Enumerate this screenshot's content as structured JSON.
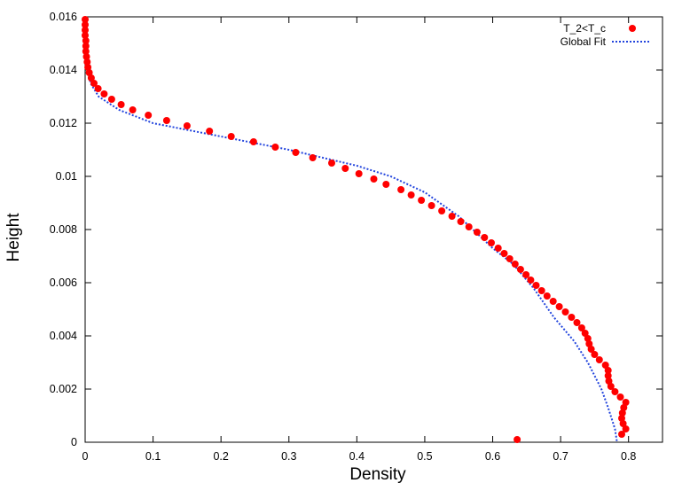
{
  "chart_data": {
    "type": "scatter",
    "title": "",
    "xlabel": "Density",
    "ylabel": "Height",
    "xlim": [
      0,
      0.85
    ],
    "ylim": [
      0,
      0.016
    ],
    "grid": false,
    "legend_position": "top-right",
    "x_ticks": [
      0,
      0.1,
      0.2,
      0.3,
      0.4,
      0.5,
      0.6,
      0.7,
      0.8
    ],
    "x_tick_labels": [
      "0",
      "0.1",
      "0.2",
      "0.3",
      "0.4",
      "0.5",
      "0.6",
      "0.7",
      "0.8"
    ],
    "y_ticks": [
      0,
      0.002,
      0.004,
      0.006,
      0.008,
      0.01,
      0.012,
      0.014,
      0.016
    ],
    "y_tick_labels": [
      "0",
      "0.002",
      "0.004",
      "0.006",
      "0.008",
      "0.01",
      "0.012",
      "0.014",
      "0.016"
    ],
    "series": [
      {
        "name": "T_2<T_c",
        "style": "points",
        "color": "#ff0000",
        "points": [
          [
            0.0,
            0.0159
          ],
          [
            0.0,
            0.0157
          ],
          [
            0.0,
            0.0155
          ],
          [
            0.0,
            0.0153
          ],
          [
            0.001,
            0.0151
          ],
          [
            0.001,
            0.0149
          ],
          [
            0.001,
            0.0147
          ],
          [
            0.002,
            0.0145
          ],
          [
            0.003,
            0.0143
          ],
          [
            0.004,
            0.0141
          ],
          [
            0.006,
            0.0139
          ],
          [
            0.009,
            0.0137
          ],
          [
            0.013,
            0.0135
          ],
          [
            0.019,
            0.0133
          ],
          [
            0.028,
            0.0131
          ],
          [
            0.039,
            0.0129
          ],
          [
            0.053,
            0.0127
          ],
          [
            0.07,
            0.0125
          ],
          [
            0.093,
            0.0123
          ],
          [
            0.12,
            0.0121
          ],
          [
            0.15,
            0.0119
          ],
          [
            0.183,
            0.0117
          ],
          [
            0.215,
            0.0115
          ],
          [
            0.248,
            0.0113
          ],
          [
            0.28,
            0.0111
          ],
          [
            0.31,
            0.0109
          ],
          [
            0.335,
            0.0107
          ],
          [
            0.363,
            0.0105
          ],
          [
            0.383,
            0.0103
          ],
          [
            0.403,
            0.0101
          ],
          [
            0.425,
            0.0099
          ],
          [
            0.443,
            0.0097
          ],
          [
            0.465,
            0.0095
          ],
          [
            0.48,
            0.0093
          ],
          [
            0.495,
            0.0091
          ],
          [
            0.51,
            0.0089
          ],
          [
            0.525,
            0.0087
          ],
          [
            0.54,
            0.0085
          ],
          [
            0.553,
            0.0083
          ],
          [
            0.565,
            0.0081
          ],
          [
            0.577,
            0.0079
          ],
          [
            0.588,
            0.0077
          ],
          [
            0.598,
            0.0075
          ],
          [
            0.608,
            0.0073
          ],
          [
            0.617,
            0.0071
          ],
          [
            0.625,
            0.0069
          ],
          [
            0.633,
            0.0067
          ],
          [
            0.641,
            0.0065
          ],
          [
            0.649,
            0.0063
          ],
          [
            0.656,
            0.0061
          ],
          [
            0.664,
            0.0059
          ],
          [
            0.672,
            0.0057
          ],
          [
            0.68,
            0.0055
          ],
          [
            0.689,
            0.0053
          ],
          [
            0.698,
            0.0051
          ],
          [
            0.707,
            0.0049
          ],
          [
            0.716,
            0.0047
          ],
          [
            0.724,
            0.0045
          ],
          [
            0.731,
            0.0043
          ],
          [
            0.736,
            0.0041
          ],
          [
            0.74,
            0.0039
          ],
          [
            0.742,
            0.0037
          ],
          [
            0.745,
            0.0035
          ],
          [
            0.75,
            0.0033
          ],
          [
            0.757,
            0.0031
          ],
          [
            0.766,
            0.0029
          ],
          [
            0.77,
            0.0027
          ],
          [
            0.77,
            0.0025
          ],
          [
            0.771,
            0.0023
          ],
          [
            0.774,
            0.0021
          ],
          [
            0.78,
            0.0019
          ],
          [
            0.788,
            0.0017
          ],
          [
            0.796,
            0.0015
          ],
          [
            0.793,
            0.0013
          ],
          [
            0.791,
            0.0011
          ],
          [
            0.79,
            0.0009
          ],
          [
            0.792,
            0.0007
          ],
          [
            0.796,
            0.0005
          ],
          [
            0.79,
            0.0003
          ],
          [
            0.636,
            0.0001
          ]
        ]
      },
      {
        "name": "Global Fit",
        "style": "dotted-line",
        "color": "#2244dd",
        "points": [
          [
            0.0,
            0.016
          ],
          [
            0.0,
            0.0155
          ],
          [
            0.001,
            0.015
          ],
          [
            0.002,
            0.0145
          ],
          [
            0.004,
            0.014
          ],
          [
            0.008,
            0.0135
          ],
          [
            0.02,
            0.013
          ],
          [
            0.05,
            0.0125
          ],
          [
            0.1,
            0.012
          ],
          [
            0.15,
            0.01175
          ],
          [
            0.2,
            0.0115
          ],
          [
            0.25,
            0.01125
          ],
          [
            0.3,
            0.011
          ],
          [
            0.35,
            0.0107
          ],
          [
            0.4,
            0.0104
          ],
          [
            0.45,
            0.01
          ],
          [
            0.5,
            0.0094
          ],
          [
            0.55,
            0.0085
          ],
          [
            0.6,
            0.0073
          ],
          [
            0.63,
            0.0067
          ],
          [
            0.66,
            0.0058
          ],
          [
            0.69,
            0.0047
          ],
          [
            0.72,
            0.0038
          ],
          [
            0.74,
            0.003
          ],
          [
            0.76,
            0.002
          ],
          [
            0.77,
            0.0013
          ],
          [
            0.78,
            0.0005
          ],
          [
            0.783,
            0.0
          ]
        ]
      }
    ]
  }
}
